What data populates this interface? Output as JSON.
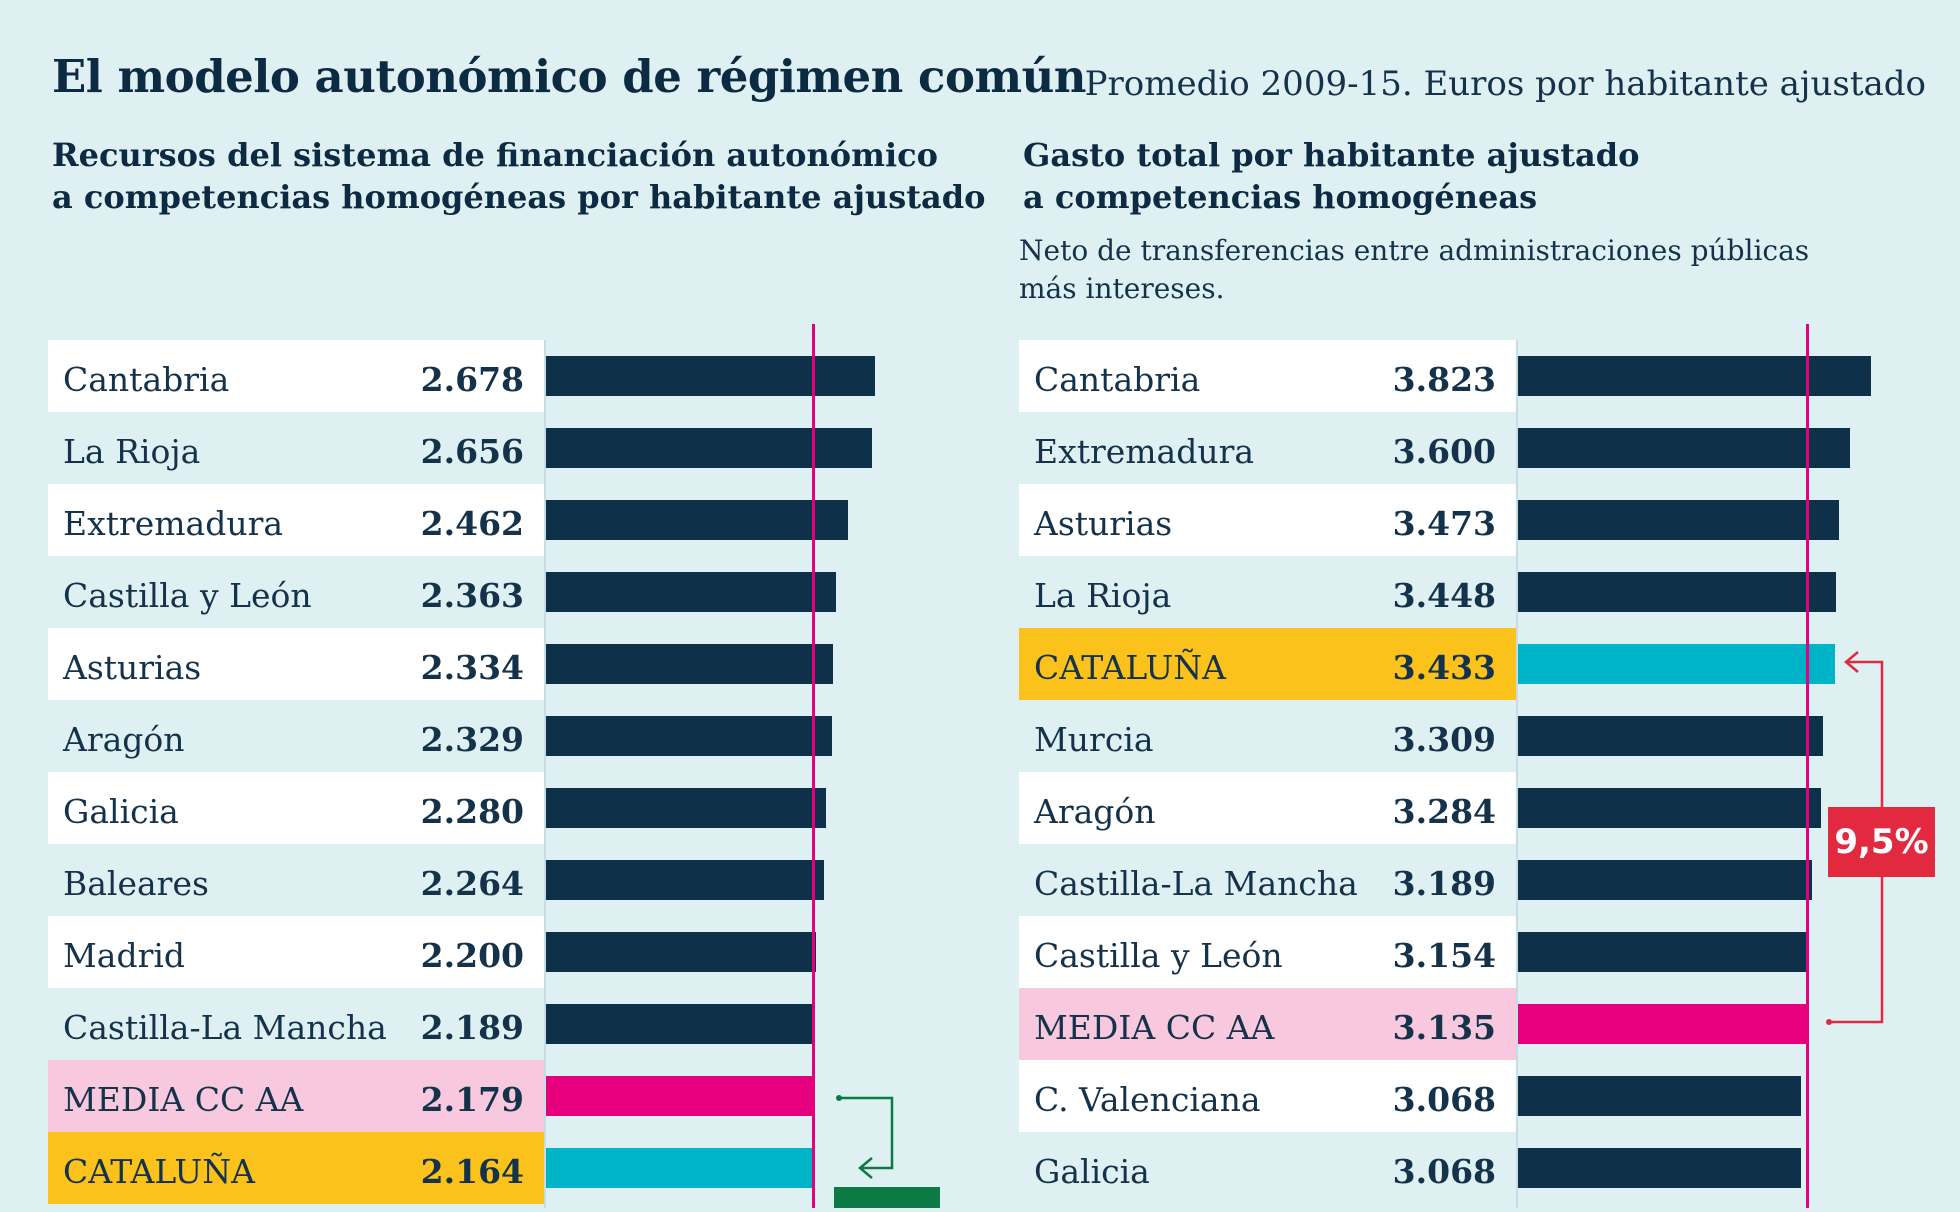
{
  "title": "El modelo autonómico de régimen común",
  "note": "Promedio 2009-15. Euros por habitante ajustado",
  "colors": {
    "background": "#dff0f3",
    "bar": "#0e3048",
    "media_bar": "#e6007e",
    "cataluna_bar": "#00b4c8",
    "media_label_bg": "#f8c8df",
    "cataluna_label_bg": "#fcc21c",
    "row_white": "#ffffff",
    "badge": "#e2293f",
    "arrow_left": "#0c7a45",
    "arrow_right": "#e2293f"
  },
  "chart_data": [
    {
      "type": "bar",
      "orientation": "horizontal",
      "title": "Recursos del sistema de financiación autonómico a competencias homogéneas por habitante ajustado",
      "title_lines": [
        "Recursos del sistema de financiación autonómico",
        "a competencias homogéneas por habitante ajustado"
      ],
      "categories": [
        "Cantabria",
        "La Rioja",
        "Extremadura",
        "Castilla y León",
        "Asturias",
        "Aragón",
        "Galicia",
        "Baleares",
        "Madrid",
        "Castilla-La Mancha",
        "MEDIA CC AA",
        "CATALUÑA"
      ],
      "values": [
        2678,
        2656,
        2462,
        2363,
        2334,
        2329,
        2280,
        2264,
        2200,
        2189,
        2179,
        2164
      ],
      "labels": [
        "2.678",
        "2.656",
        "2.462",
        "2.363",
        "2.334",
        "2.329",
        "2.280",
        "2.264",
        "2.200",
        "2.189",
        "2.179",
        "2.164"
      ],
      "reference_line": 2179,
      "xlim": [
        0,
        2678
      ]
    },
    {
      "type": "bar",
      "orientation": "horizontal",
      "title": "Gasto total por habitante ajustado a competencias homogéneas",
      "title_lines": [
        "Gasto total por habitante ajustado",
        "a competencias homogéneas"
      ],
      "subtitle_lines": [
        "Neto de transferencias entre administraciones públicas",
        "más intereses."
      ],
      "categories": [
        "Cantabria",
        "Extremadura",
        "Asturias",
        "La Rioja",
        "CATALUÑA",
        "Murcia",
        "Aragón",
        "Castilla-La Mancha",
        "Castilla y León",
        "MEDIA CC AA",
        "C. Valenciana",
        "Galicia"
      ],
      "values": [
        3823,
        3600,
        3473,
        3448,
        3433,
        3309,
        3284,
        3189,
        3154,
        3135,
        3068,
        3068
      ],
      "labels": [
        "3.823",
        "3.600",
        "3.473",
        "3.448",
        "3.433",
        "3.309",
        "3.284",
        "3.189",
        "3.154",
        "3.135",
        "3.068",
        "3.068"
      ],
      "reference_line": 3135,
      "xlim": [
        0,
        3823
      ],
      "annotation": "9,5%"
    }
  ]
}
